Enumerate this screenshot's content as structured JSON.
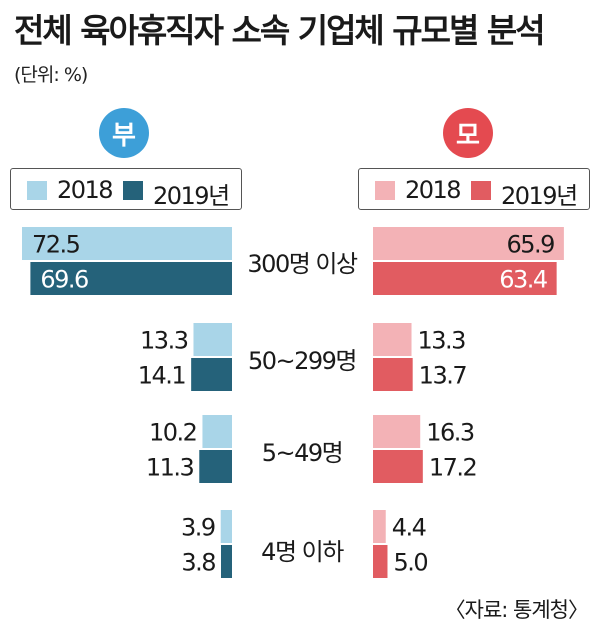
{
  "title": "전체 육아휴직자 소속 기업체 규모별 분석",
  "unit_label": "(단위: %)",
  "source": "〈자료: 통계청〉",
  "colors": {
    "father_2018": "#a9d5e8",
    "father_2019": "#25627a",
    "mother_2018": "#f3b2b6",
    "mother_2019": "#e15c61",
    "father_badge": "#3d9fd8",
    "mother_badge": "#e44a50"
  },
  "panels": {
    "father": {
      "badge": "부",
      "legend": [
        "2018",
        "2019년"
      ]
    },
    "mother": {
      "badge": "모",
      "legend": [
        "2018",
        "2019년"
      ]
    }
  },
  "chart_data": {
    "type": "bar",
    "orientation": "horizontal-butterfly",
    "categories": [
      "300명 이상",
      "50~299명",
      "5~49명",
      "4명 이하"
    ],
    "left_panel": {
      "label": "부",
      "series": [
        {
          "name": "2018",
          "values": [
            72.5,
            13.3,
            10.2,
            3.9
          ]
        },
        {
          "name": "2019년",
          "values": [
            69.6,
            14.1,
            11.3,
            3.8
          ]
        }
      ]
    },
    "right_panel": {
      "label": "모",
      "series": [
        {
          "name": "2018",
          "values": [
            65.9,
            13.3,
            16.3,
            4.4
          ]
        },
        {
          "name": "2019년",
          "values": [
            63.4,
            13.7,
            17.2,
            5.0
          ]
        }
      ]
    },
    "value_labels": {
      "father": [
        [
          "72.5",
          "69.6"
        ],
        [
          "13.3",
          "14.1"
        ],
        [
          "10.2",
          "11.3"
        ],
        [
          "3.9",
          "3.8"
        ]
      ],
      "mother": [
        [
          "65.9",
          "63.4"
        ],
        [
          "13.3",
          "13.7"
        ],
        [
          "16.3",
          "17.2"
        ],
        [
          "4.4",
          "5.0"
        ]
      ]
    },
    "xlim": [
      0,
      75
    ],
    "unit": "%"
  }
}
